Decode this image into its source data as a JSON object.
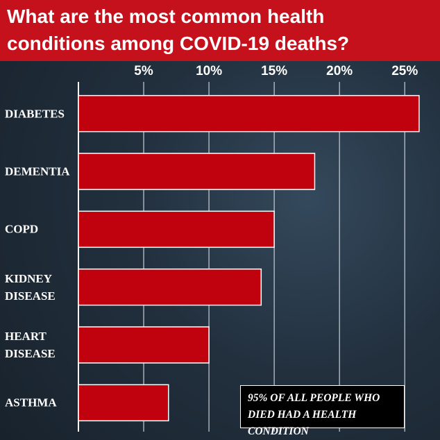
{
  "chart_data": {
    "type": "bar",
    "orientation": "horizontal",
    "title": "What are the most common health conditions among COVID-19 deaths?",
    "categories": [
      "DIABETES",
      "DEMENTIA",
      "COPD",
      "KIDNEY DISEASE",
      "HEART DISEASE",
      "ASTHMA"
    ],
    "values": [
      26.1,
      18.1,
      15.0,
      14.0,
      10.0,
      6.9
    ],
    "color": "#c0020f",
    "xlim": [
      0,
      27.7
    ],
    "xticks": [
      {
        "value": 5,
        "label": "5%"
      },
      {
        "value": 10,
        "label": "10%"
      },
      {
        "value": 15,
        "label": "15%"
      },
      {
        "value": 20,
        "label": "20%"
      },
      {
        "value": 25,
        "label": "25%"
      }
    ],
    "grid": true,
    "annotation": "95% OF ALL PEOPLE WHO DIED HAD A HEALTH CONDITION"
  }
}
